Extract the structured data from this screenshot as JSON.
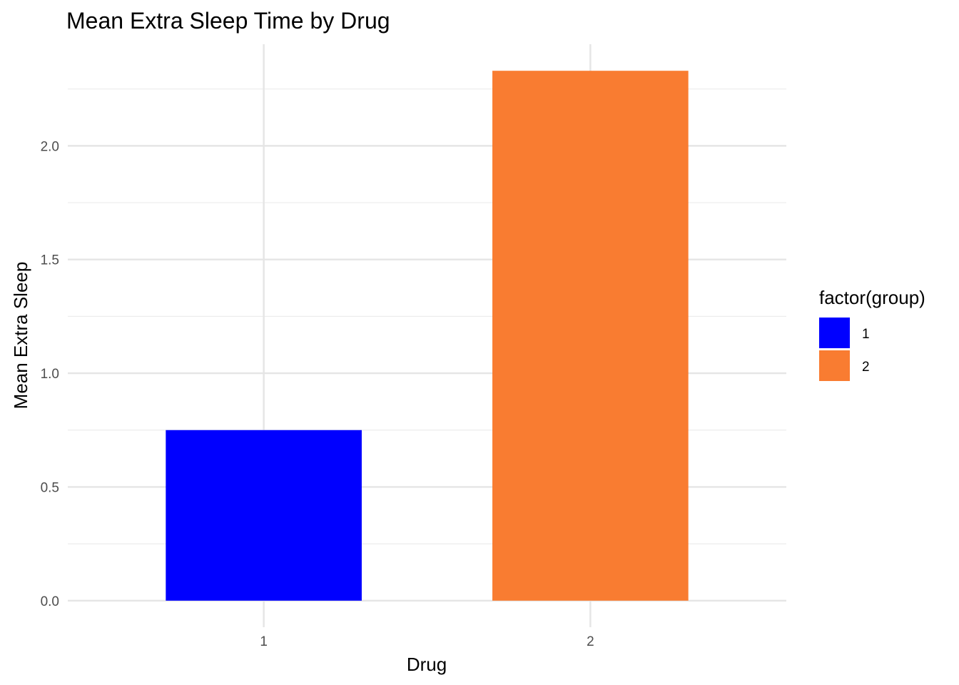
{
  "chart_data": {
    "type": "bar",
    "title": "Mean Extra Sleep Time by Drug",
    "xlabel": "Drug",
    "ylabel": "Mean Extra Sleep",
    "categories": [
      "1",
      "2"
    ],
    "values": [
      0.75,
      2.33
    ],
    "ylim": [
      -0.1167,
      2.4467
    ],
    "yticks": [
      0.0,
      0.5,
      1.0,
      1.5,
      2.0
    ],
    "ytick_labels": [
      "0.0",
      "0.5",
      "1.0",
      "1.5",
      "2.0"
    ],
    "bar_colors": [
      "#0000FF",
      "#F97C31"
    ],
    "grid": true,
    "legend": {
      "title": "factor(group)",
      "position": "right",
      "entries": [
        {
          "label": "1",
          "color": "#0000FF"
        },
        {
          "label": "2",
          "color": "#F97C31"
        }
      ]
    }
  }
}
